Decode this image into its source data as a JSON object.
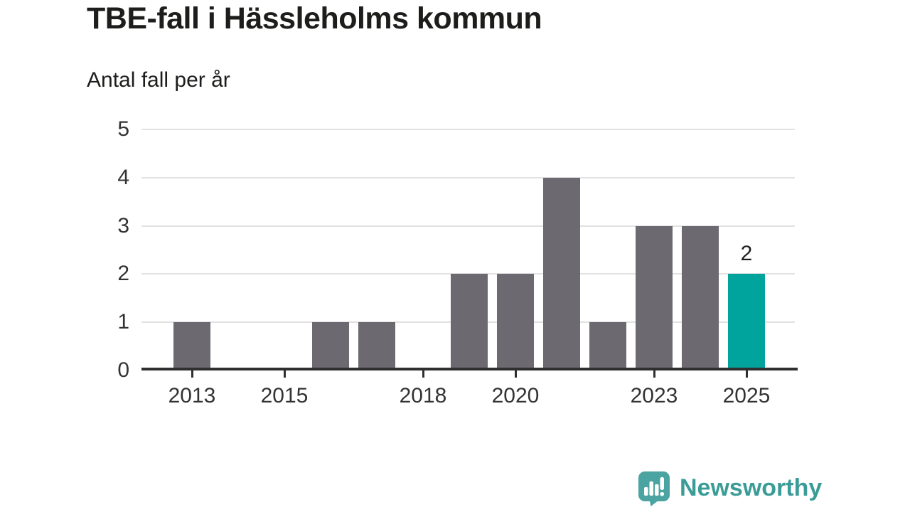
{
  "header": {
    "title": "TBE-fall i Hässleholms kommun",
    "subtitle": "Antal fall per år"
  },
  "chart_data": {
    "type": "bar",
    "title": "TBE-fall i Hässleholms kommun",
    "subtitle": "Antal fall per år",
    "xlabel": "",
    "ylabel": "Antal fall per år",
    "categories": [
      2013,
      2014,
      2015,
      2016,
      2017,
      2018,
      2019,
      2020,
      2021,
      2022,
      2023,
      2024,
      2025
    ],
    "values": [
      1,
      0,
      0,
      1,
      1,
      0,
      2,
      2,
      4,
      1,
      3,
      3,
      2
    ],
    "ylim": [
      0,
      5
    ],
    "yticks": [
      0,
      1,
      2,
      3,
      4,
      5
    ],
    "xtick_years": [
      2013,
      2015,
      2018,
      2020,
      2023,
      2025
    ],
    "grid": "horizontal",
    "legend": "none",
    "highlight_year": 2025,
    "value_labels": [
      {
        "year": 2025,
        "text": "2"
      }
    ]
  },
  "colors": {
    "bar": "#6c6a70",
    "bar_highlight": "#00a49c",
    "gridline": "#e2e2e2",
    "axis": "#2f2f2f",
    "title_text": "#1d1d1b",
    "tick_text": "#333333",
    "brand_text": "#3a9c97",
    "logo_bg": "#4ba4a1",
    "logo_glyph": "#ffffff"
  },
  "footer": {
    "brand_name": "Newsworthy"
  }
}
